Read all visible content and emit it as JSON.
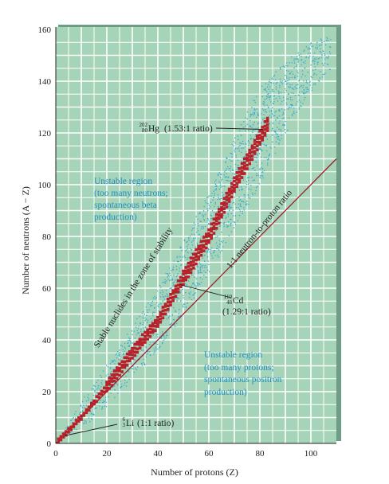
{
  "chart_data": {
    "type": "scatter",
    "xlabel": "Number of protons (Z)",
    "ylabel": "Number of neutrons (A − Z)",
    "xlim": [
      0,
      110
    ],
    "ylim": [
      0,
      160
    ],
    "xticks": [
      "0",
      "20",
      "40",
      "60",
      "80",
      "100"
    ],
    "yticks": [
      "0",
      "20",
      "40",
      "60",
      "80",
      "100",
      "120",
      "140",
      "160"
    ],
    "grid": true,
    "colors": {
      "background": "#a6d4b8",
      "grid": "#ffffff",
      "stable": "#b8202a",
      "unstable_dots": "#3aa8d0",
      "reference_line": "#9c1e2a",
      "region_text": "#1f8fc0"
    },
    "reference_line": {
      "label": "1:1 neutron-to-proton ratio",
      "x": [
        0,
        110
      ],
      "y": [
        0,
        110
      ]
    },
    "stable_band": {
      "name": "Stable nuclides in the zone of stability",
      "centerline": [
        [
          0,
          0
        ],
        [
          10,
          10
        ],
        [
          20,
          22
        ],
        [
          30,
          35
        ],
        [
          40,
          47
        ],
        [
          50,
          64
        ],
        [
          60,
          80
        ],
        [
          70,
          100
        ],
        [
          80,
          118
        ],
        [
          84,
          125
        ]
      ]
    },
    "unstable_band": {
      "upper": [
        [
          0,
          0
        ],
        [
          10,
          16
        ],
        [
          20,
          30
        ],
        [
          30,
          45
        ],
        [
          40,
          60
        ],
        [
          50,
          78
        ],
        [
          60,
          97
        ],
        [
          70,
          118
        ],
        [
          80,
          137
        ],
        [
          90,
          148
        ],
        [
          100,
          155
        ],
        [
          108,
          158
        ]
      ],
      "lower": [
        [
          0,
          0
        ],
        [
          10,
          6
        ],
        [
          20,
          14
        ],
        [
          30,
          25
        ],
        [
          40,
          36
        ],
        [
          50,
          50
        ],
        [
          60,
          66
        ],
        [
          70,
          83
        ],
        [
          80,
          100
        ],
        [
          90,
          120
        ],
        [
          100,
          136
        ],
        [
          108,
          145
        ]
      ]
    },
    "annotations": [
      {
        "label_mass": "202",
        "label_atomic": "80",
        "label_symbol": "Hg",
        "label_note": "(1.53:1 ratio)",
        "x": 80,
        "y": 122
      },
      {
        "label_mass": "110",
        "label_atomic": "48",
        "label_symbol": "Cd",
        "label_note": "(1.29:1 ratio)",
        "x": 48,
        "y": 62
      },
      {
        "label_mass": "6",
        "label_atomic": "3",
        "label_symbol": "Li",
        "label_note": "(1:1 ratio)",
        "x": 3,
        "y": 3
      }
    ],
    "regions": [
      {
        "lines": [
          "Unstable region",
          "(too many neutrons;",
          "spontaneous beta",
          "production)"
        ]
      },
      {
        "lines": [
          "Unstable region",
          "(too many protons;",
          "spontaneous positron",
          "production)"
        ]
      }
    ]
  }
}
